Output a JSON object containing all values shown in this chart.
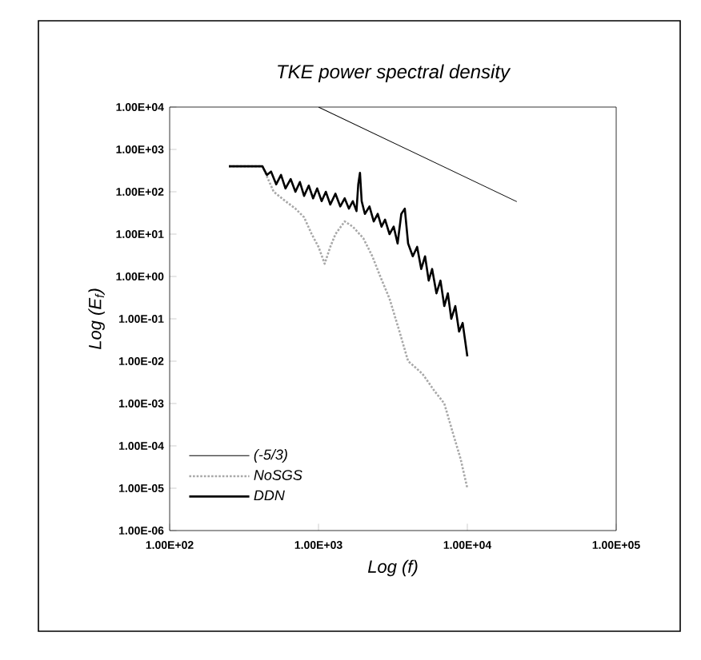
{
  "chart_data": {
    "type": "line",
    "title": "TKE power spectral density",
    "xlabel": "Log (f)",
    "ylabel": "Log (E$_{f}$)",
    "log": "xy",
    "xlim": [
      100,
      100000
    ],
    "ylim": [
      1e-06,
      10000
    ],
    "xticks": [
      {
        "value": 100,
        "label": "1.00E+02"
      },
      {
        "value": 1000,
        "label": "1.00E+03"
      },
      {
        "value": 10000,
        "label": "1.00E+04"
      },
      {
        "value": 100000,
        "label": "1.00E+05"
      }
    ],
    "yticks": [
      {
        "value": 1e-06,
        "label": "1.00E-06"
      },
      {
        "value": 1e-05,
        "label": "1.00E-05"
      },
      {
        "value": 0.0001,
        "label": "1.00E-04"
      },
      {
        "value": 0.001,
        "label": "1.00E-03"
      },
      {
        "value": 0.01,
        "label": "1.00E-02"
      },
      {
        "value": 0.1,
        "label": "1.00E-01"
      },
      {
        "value": 1,
        "label": "1.00E+00"
      },
      {
        "value": 10,
        "label": "1.00E+01"
      },
      {
        "value": 100,
        "label": "1.00E+02"
      },
      {
        "value": 1000,
        "label": "1.00E+03"
      },
      {
        "value": 10000,
        "label": "1.00E+04"
      }
    ],
    "grid": false,
    "legend": "bottom left",
    "marker": "none",
    "series": [
      {
        "name": "(-5/3)",
        "color": "#000000",
        "line_style": "solid",
        "x": [
          1000,
          21500
        ],
        "values": [
          10000,
          58.5
        ]
      },
      {
        "name": "NoSGS",
        "color": "#a8a8a8",
        "line_style": "dotted",
        "x": [
          250,
          420,
          500,
          600,
          700,
          800,
          900,
          1000,
          1100,
          1200,
          1300,
          1500,
          1700,
          2000,
          2300,
          2600,
          3000,
          3500,
          4000,
          4500,
          5000,
          6000,
          7000,
          8000,
          9000,
          10000
        ],
        "values": [
          400,
          400,
          100,
          60,
          40,
          25,
          10,
          5,
          2,
          5,
          10,
          20,
          15,
          8,
          3,
          1,
          0.3,
          0.05,
          0.01,
          0.007,
          0.005,
          0.002,
          0.001,
          0.0002,
          5e-05,
          1e-05
        ]
      },
      {
        "name": "DDN",
        "color": "#000000",
        "line_style": "solid",
        "x": [
          250,
          420,
          450,
          480,
          520,
          560,
          600,
          650,
          700,
          750,
          800,
          860,
          920,
          980,
          1050,
          1120,
          1200,
          1300,
          1400,
          1500,
          1600,
          1700,
          1800,
          1850,
          1900,
          1950,
          2050,
          2200,
          2350,
          2500,
          2650,
          2800,
          3000,
          3200,
          3400,
          3600,
          3800,
          4000,
          4300,
          4600,
          4900,
          5200,
          5500,
          5800,
          6200,
          6600,
          7000,
          7400,
          7800,
          8300,
          8800,
          9300,
          10000
        ],
        "values": [
          400,
          400,
          250,
          300,
          150,
          250,
          120,
          200,
          100,
          170,
          80,
          140,
          70,
          120,
          60,
          100,
          50,
          90,
          45,
          70,
          40,
          60,
          35,
          150,
          280,
          60,
          30,
          45,
          20,
          30,
          15,
          22,
          10,
          15,
          6,
          30,
          40,
          6,
          3,
          5,
          1.5,
          3,
          0.8,
          1.5,
          0.4,
          0.8,
          0.2,
          0.4,
          0.1,
          0.2,
          0.05,
          0.08,
          0.013
        ]
      }
    ]
  }
}
